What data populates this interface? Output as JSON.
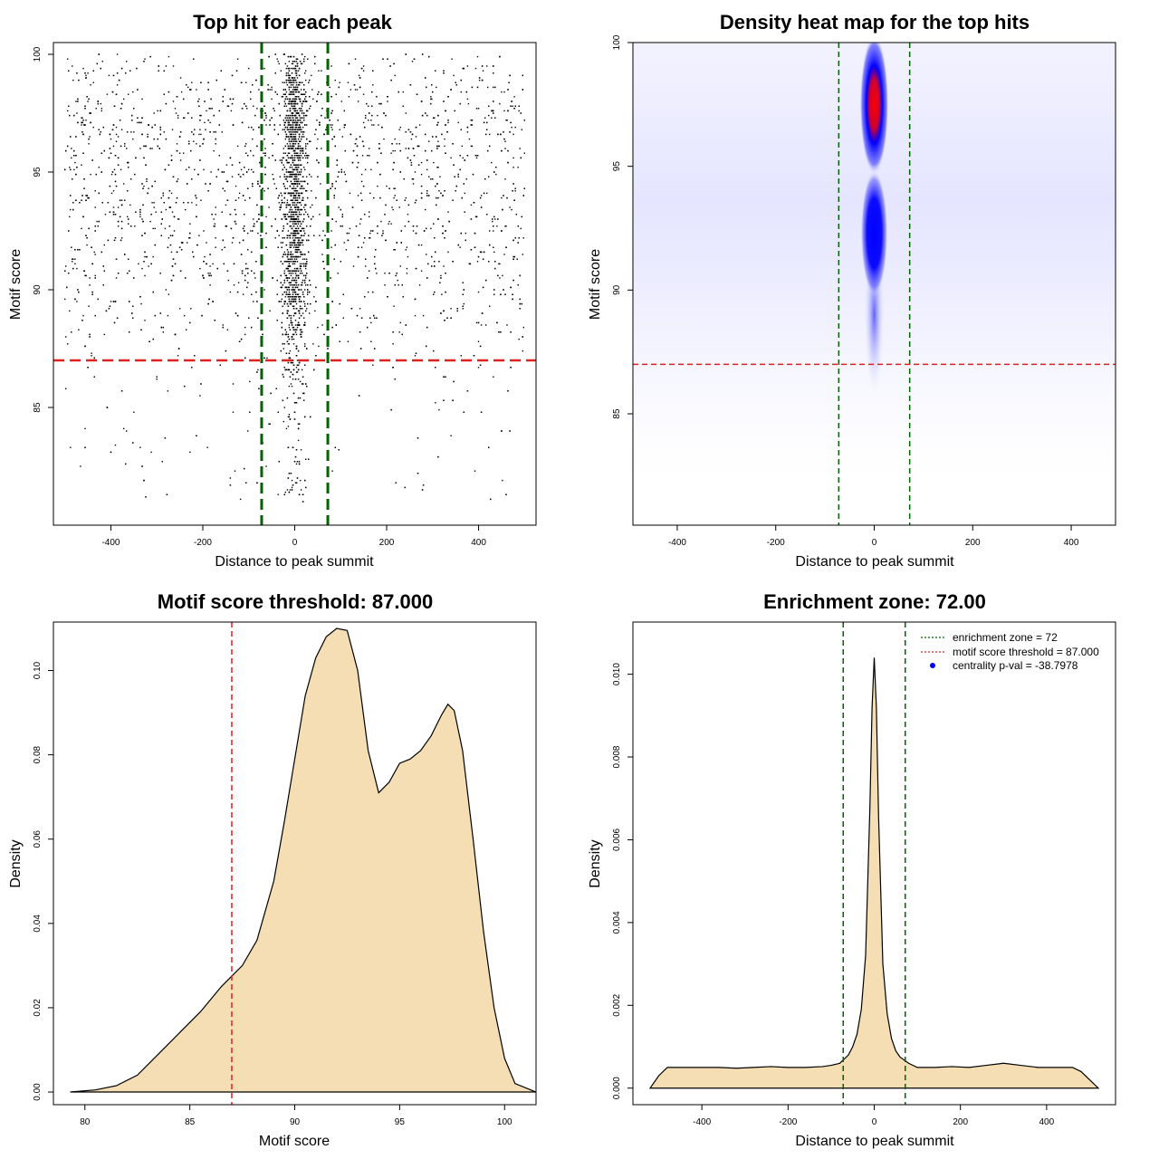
{
  "chart_data": [
    {
      "type": "scatter",
      "title": "Top hit for each peak",
      "xlabel": "Distance to peak summit",
      "ylabel": "Motif score",
      "xlim": [
        -525,
        525
      ],
      "ylim": [
        80,
        100.5
      ],
      "xticks": [
        -400,
        -200,
        0,
        200,
        400
      ],
      "yticks": [
        85,
        90,
        95,
        100
      ],
      "vlines": [
        -72,
        72
      ],
      "hline": 87,
      "vline_color": "#006400",
      "hline_color": "#dd2222",
      "point_color": "#000000",
      "distribution": {
        "x_range": [
          -500,
          500
        ],
        "y_range": [
          81,
          100
        ],
        "central_sd": 14,
        "central_fraction": 0.42,
        "n_points": 6000,
        "score_modes": [
          92,
          97.2
        ]
      }
    },
    {
      "type": "heatmap",
      "title": "Density heat map for the top hits",
      "xlabel": "Distance to peak summit",
      "ylabel": "Motif score",
      "xlim": [
        -490,
        490
      ],
      "ylim": [
        80.5,
        100
      ],
      "xticks": [
        -400,
        -200,
        0,
        200,
        400
      ],
      "yticks": [
        85,
        90,
        95,
        100
      ],
      "vlines": [
        -72,
        72
      ],
      "hline": 87,
      "colors": [
        "#ffffff",
        "#0000ff",
        "#ff0000"
      ],
      "hotspots": [
        {
          "x": 0,
          "y": 97.5,
          "level": "high"
        },
        {
          "x": 0,
          "y": 92.3,
          "level": "medium"
        }
      ]
    },
    {
      "type": "area",
      "title": "Motif score threshold: 87.000",
      "xlabel": "Motif score",
      "ylabel": "Density",
      "xlim": [
        78.5,
        101.5
      ],
      "ylim": [
        -0.003,
        0.1115
      ],
      "xticks": [
        80,
        85,
        90,
        95,
        100
      ],
      "yticks": [
        0.0,
        0.02,
        0.04,
        0.06,
        0.08,
        0.1
      ],
      "ytick_labels": [
        "0.00",
        "0.02",
        "0.04",
        "0.06",
        "0.08",
        "0.10"
      ],
      "vline": 87,
      "fill": "#f5deb3",
      "x": [
        79.3,
        80.5,
        81.5,
        82.5,
        83.5,
        84.5,
        85.5,
        86.5,
        87.5,
        88.2,
        89,
        89.5,
        90,
        90.5,
        91,
        91.5,
        92,
        92.5,
        93,
        93.5,
        94,
        94.5,
        95,
        95.5,
        96,
        96.5,
        97,
        97.3,
        97.6,
        98,
        98.5,
        99,
        99.5,
        100,
        100.5,
        101.5
      ],
      "y": [
        0.0,
        0.0005,
        0.0015,
        0.004,
        0.009,
        0.014,
        0.019,
        0.025,
        0.03,
        0.036,
        0.05,
        0.064,
        0.079,
        0.094,
        0.103,
        0.108,
        0.11,
        0.1095,
        0.1,
        0.081,
        0.071,
        0.0735,
        0.078,
        0.079,
        0.081,
        0.0845,
        0.0895,
        0.092,
        0.0905,
        0.081,
        0.06,
        0.038,
        0.02,
        0.008,
        0.002,
        0.0
      ]
    },
    {
      "type": "area",
      "title": "Enrichment zone: 72.00",
      "xlabel": "Distance to peak summit",
      "ylabel": "Density",
      "xlim": [
        -560,
        560
      ],
      "ylim": [
        -0.0004,
        0.01126
      ],
      "xticks": [
        -400,
        -200,
        0,
        200,
        400
      ],
      "yticks": [
        0.0,
        0.002,
        0.004,
        0.006,
        0.008,
        0.01
      ],
      "ytick_labels": [
        "0.000",
        "0.002",
        "0.004",
        "0.006",
        "0.008",
        "0.010"
      ],
      "vlines": [
        -72,
        72
      ],
      "fill": "#f5deb3",
      "x": [
        -520,
        -500,
        -480,
        -440,
        -400,
        -360,
        -320,
        -280,
        -240,
        -200,
        -160,
        -120,
        -100,
        -80,
        -60,
        -50,
        -40,
        -30,
        -20,
        -10,
        -5,
        0,
        5,
        10,
        20,
        30,
        40,
        50,
        60,
        80,
        100,
        140,
        180,
        220,
        260,
        300,
        340,
        380,
        420,
        460,
        480,
        500,
        520
      ],
      "y": [
        0.0,
        0.0003,
        0.0005,
        0.0005,
        0.0005,
        0.0005,
        0.00048,
        0.0005,
        0.00052,
        0.0005,
        0.0005,
        0.00052,
        0.00055,
        0.0006,
        0.0008,
        0.001,
        0.0013,
        0.0019,
        0.0032,
        0.0068,
        0.0092,
        0.0104,
        0.0092,
        0.0066,
        0.003,
        0.0018,
        0.0012,
        0.0009,
        0.00075,
        0.0006,
        0.0005,
        0.0005,
        0.00052,
        0.0005,
        0.00055,
        0.0006,
        0.00055,
        0.0005,
        0.0005,
        0.0005,
        0.0004,
        0.0002,
        0.0
      ],
      "legend": [
        {
          "label": "enrichment zone = 72",
          "style": "dotted",
          "color": "#006400"
        },
        {
          "label": "motif score threshold = 87.000",
          "style": "dotted",
          "color": "#dd2222"
        },
        {
          "label": "centrality p-val = -38.7978",
          "style": "point",
          "color": "#0000ff"
        }
      ]
    }
  ]
}
